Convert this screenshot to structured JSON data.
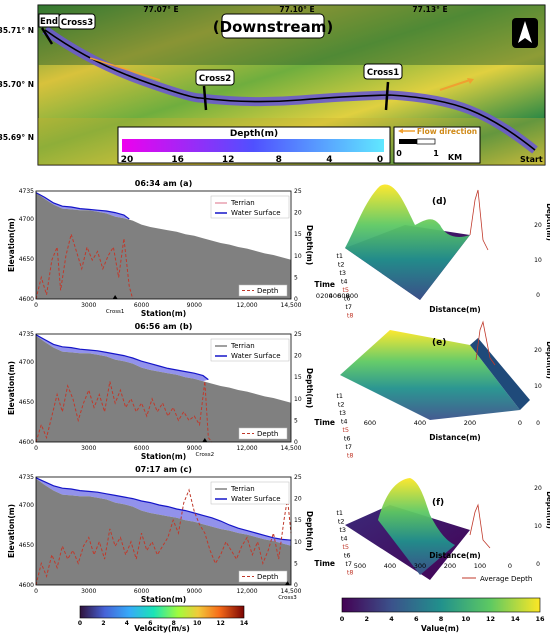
{
  "map": {
    "title": "(Downstream)",
    "lat_labels": [
      "35.71° N",
      "35.70° N",
      "35.69° N"
    ],
    "lon_labels": [
      "77.07° E",
      "77.10° E",
      "77.13° E"
    ],
    "cross_labels": [
      "Cross3",
      "Cross2",
      "Cross1"
    ],
    "end_label": "End",
    "start_label": "Start",
    "flow_label": "Flow direction",
    "scale_labels": [
      "0",
      "1",
      "KM"
    ],
    "depth_title": "Depth(m)",
    "depth_ticks": [
      "20",
      "16",
      "12",
      "8",
      "4",
      "0"
    ]
  },
  "chart_data": [
    {
      "id": "a",
      "type": "area",
      "title": "06:34 am (a)",
      "xlabel": "Station(m)",
      "ylabel": "Elevation(m)",
      "y2label": "Depth(m)",
      "xlim": [
        0,
        14500
      ],
      "ylim": [
        4600,
        4735
      ],
      "y2lim": [
        0,
        25
      ],
      "xticks": [
        "0",
        "3000",
        "6000",
        "9000",
        "12,000",
        "14,500"
      ],
      "yticks": [
        "4600",
        "4650",
        "4700",
        "4735"
      ],
      "y2ticks": [
        "0",
        "5",
        "10",
        "15",
        "20",
        "25"
      ],
      "marker_label": "Cross1",
      "marker_x": 4500,
      "legend": [
        "Terrian",
        "Water Surface"
      ],
      "depth_legend": "Depth",
      "terrain_color": "#808080",
      "water_color": "#1515c8",
      "depth_color": "#c0392b",
      "terrain": [
        [
          0,
          4733
        ],
        [
          500,
          4725
        ],
        [
          1000,
          4718
        ],
        [
          1500,
          4713
        ],
        [
          2000,
          4712
        ],
        [
          2500,
          4711
        ],
        [
          3000,
          4711
        ],
        [
          3500,
          4709
        ],
        [
          4000,
          4707
        ],
        [
          4500,
          4703
        ],
        [
          5000,
          4701
        ],
        [
          5500,
          4698
        ],
        [
          6000,
          4693
        ],
        [
          6500,
          4690
        ],
        [
          7000,
          4688
        ],
        [
          7500,
          4686
        ],
        [
          8000,
          4684
        ],
        [
          8500,
          4681
        ],
        [
          9000,
          4679
        ],
        [
          9500,
          4676
        ],
        [
          10000,
          4673
        ],
        [
          10500,
          4670
        ],
        [
          11000,
          4668
        ],
        [
          11500,
          4665
        ],
        [
          12000,
          4663
        ],
        [
          12500,
          4660
        ],
        [
          13000,
          4657
        ],
        [
          13500,
          4655
        ],
        [
          14000,
          4652
        ],
        [
          14500,
          4649
        ]
      ],
      "water": [
        [
          0,
          4733
        ],
        [
          500,
          4727
        ],
        [
          1000,
          4720
        ],
        [
          1500,
          4716
        ],
        [
          2000,
          4715
        ],
        [
          2500,
          4713
        ],
        [
          3000,
          4712
        ],
        [
          3500,
          4711
        ],
        [
          4000,
          4710
        ],
        [
          4500,
          4708
        ],
        [
          5000,
          4705
        ],
        [
          5300,
          4700
        ]
      ],
      "depth": [
        [
          0,
          0
        ],
        [
          300,
          5
        ],
        [
          600,
          1
        ],
        [
          900,
          9
        ],
        [
          1200,
          12
        ],
        [
          1400,
          2
        ],
        [
          1700,
          10
        ],
        [
          2000,
          15
        ],
        [
          2300,
          11
        ],
        [
          2600,
          7
        ],
        [
          2900,
          12
        ],
        [
          3200,
          9
        ],
        [
          3500,
          11
        ],
        [
          3800,
          7
        ],
        [
          4100,
          10
        ],
        [
          4400,
          12
        ],
        [
          4700,
          5
        ],
        [
          5000,
          14
        ],
        [
          5300,
          3
        ],
        [
          5500,
          0
        ]
      ]
    },
    {
      "id": "b",
      "type": "area",
      "title": "06:56 am (b)",
      "xlabel": "Station(m)",
      "ylabel": "Elevation(m)",
      "y2label": "Depth(m)",
      "xlim": [
        0,
        14500
      ],
      "ylim": [
        4600,
        4735
      ],
      "y2lim": [
        0,
        25
      ],
      "xticks": [
        "0",
        "3000",
        "6000",
        "9000",
        "12,000",
        "14,500"
      ],
      "yticks": [
        "4600",
        "4650",
        "4700",
        "4735"
      ],
      "y2ticks": [
        "0",
        "5",
        "10",
        "15",
        "20",
        "25"
      ],
      "marker_label": "Cross2",
      "marker_x": 9600,
      "legend": [
        "Terrian",
        "Water Surface"
      ],
      "depth_legend": "Depth",
      "terrain_color": "#808080",
      "water_color": "#1515c8",
      "depth_color": "#c0392b",
      "terrain": [
        [
          0,
          4733
        ],
        [
          500,
          4725
        ],
        [
          1000,
          4718
        ],
        [
          1500,
          4713
        ],
        [
          2000,
          4712
        ],
        [
          2500,
          4711
        ],
        [
          3000,
          4711
        ],
        [
          3500,
          4709
        ],
        [
          4000,
          4707
        ],
        [
          4500,
          4703
        ],
        [
          5000,
          4701
        ],
        [
          5500,
          4698
        ],
        [
          6000,
          4693
        ],
        [
          6500,
          4690
        ],
        [
          7000,
          4688
        ],
        [
          7500,
          4686
        ],
        [
          8000,
          4684
        ],
        [
          8500,
          4681
        ],
        [
          9000,
          4679
        ],
        [
          9500,
          4676
        ],
        [
          10000,
          4673
        ],
        [
          10500,
          4670
        ],
        [
          11000,
          4668
        ],
        [
          11500,
          4665
        ],
        [
          12000,
          4663
        ],
        [
          12500,
          4660
        ],
        [
          13000,
          4657
        ],
        [
          13500,
          4655
        ],
        [
          14000,
          4652
        ],
        [
          14500,
          4649
        ]
      ],
      "water": [
        [
          0,
          4734
        ],
        [
          500,
          4728
        ],
        [
          1000,
          4722
        ],
        [
          1500,
          4719
        ],
        [
          2000,
          4718
        ],
        [
          2500,
          4716
        ],
        [
          3000,
          4715
        ],
        [
          3500,
          4714
        ],
        [
          4000,
          4712
        ],
        [
          4500,
          4710
        ],
        [
          5000,
          4708
        ],
        [
          5500,
          4705
        ],
        [
          6000,
          4701
        ],
        [
          6500,
          4698
        ],
        [
          7000,
          4695
        ],
        [
          7500,
          4692
        ],
        [
          8000,
          4690
        ],
        [
          8500,
          4688
        ],
        [
          9000,
          4686
        ],
        [
          9500,
          4683
        ],
        [
          9800,
          4678
        ]
      ],
      "depth": [
        [
          0,
          0
        ],
        [
          300,
          4
        ],
        [
          600,
          1
        ],
        [
          900,
          6
        ],
        [
          1200,
          11
        ],
        [
          1500,
          7
        ],
        [
          1800,
          13
        ],
        [
          2100,
          10
        ],
        [
          2400,
          5
        ],
        [
          2700,
          9
        ],
        [
          3000,
          12
        ],
        [
          3300,
          8
        ],
        [
          3600,
          11
        ],
        [
          3900,
          7
        ],
        [
          4200,
          14
        ],
        [
          4500,
          9
        ],
        [
          4800,
          12
        ],
        [
          5100,
          8
        ],
        [
          5400,
          10
        ],
        [
          5700,
          7
        ],
        [
          6000,
          9
        ],
        [
          6300,
          6
        ],
        [
          6600,
          10
        ],
        [
          6900,
          7
        ],
        [
          7200,
          9
        ],
        [
          7500,
          6
        ],
        [
          7800,
          8
        ],
        [
          8100,
          5
        ],
        [
          8400,
          7
        ],
        [
          8700,
          5
        ],
        [
          9000,
          6
        ],
        [
          9300,
          4
        ],
        [
          9600,
          14
        ],
        [
          9800,
          1
        ],
        [
          10000,
          0
        ]
      ]
    },
    {
      "id": "c",
      "type": "area",
      "title": "07:17 am (c)",
      "xlabel": "Station(m)",
      "ylabel": "Elevation(m)",
      "y2label": "Depth(m)",
      "xlim": [
        0,
        14500
      ],
      "ylim": [
        4600,
        4735
      ],
      "y2lim": [
        0,
        25
      ],
      "xticks": [
        "0",
        "3000",
        "6000",
        "9000",
        "12,000",
        "14,500"
      ],
      "yticks": [
        "4600",
        "4650",
        "4700",
        "4735"
      ],
      "y2ticks": [
        "0",
        "5",
        "10",
        "15",
        "20",
        "25"
      ],
      "marker_label": "Cross3",
      "marker_x": 14300,
      "legend": [
        "Terrian",
        "Water Surface"
      ],
      "depth_legend": "Depth",
      "terrain_color": "#808080",
      "water_color": "#1515c8",
      "depth_color": "#c0392b",
      "terrain": [
        [
          0,
          4733
        ],
        [
          500,
          4725
        ],
        [
          1000,
          4718
        ],
        [
          1500,
          4713
        ],
        [
          2000,
          4712
        ],
        [
          2500,
          4711
        ],
        [
          3000,
          4711
        ],
        [
          3500,
          4709
        ],
        [
          4000,
          4707
        ],
        [
          4500,
          4703
        ],
        [
          5000,
          4701
        ],
        [
          5500,
          4698
        ],
        [
          6000,
          4693
        ],
        [
          6500,
          4690
        ],
        [
          7000,
          4688
        ],
        [
          7500,
          4686
        ],
        [
          8000,
          4684
        ],
        [
          8500,
          4681
        ],
        [
          9000,
          4679
        ],
        [
          9500,
          4676
        ],
        [
          10000,
          4673
        ],
        [
          10500,
          4670
        ],
        [
          11000,
          4668
        ],
        [
          11500,
          4665
        ],
        [
          12000,
          4663
        ],
        [
          12500,
          4660
        ],
        [
          13000,
          4657
        ],
        [
          13500,
          4655
        ],
        [
          14000,
          4652
        ],
        [
          14500,
          4649
        ]
      ],
      "water": [
        [
          0,
          4734
        ],
        [
          500,
          4729
        ],
        [
          1000,
          4724
        ],
        [
          1500,
          4721
        ],
        [
          2000,
          4720
        ],
        [
          2500,
          4718
        ],
        [
          3000,
          4717
        ],
        [
          3500,
          4716
        ],
        [
          4000,
          4714
        ],
        [
          4500,
          4712
        ],
        [
          5000,
          4710
        ],
        [
          5500,
          4708
        ],
        [
          6000,
          4705
        ],
        [
          6500,
          4703
        ],
        [
          7000,
          4700
        ],
        [
          7500,
          4698
        ],
        [
          8000,
          4695
        ],
        [
          8500,
          4693
        ],
        [
          9000,
          4690
        ],
        [
          9500,
          4687
        ],
        [
          10000,
          4684
        ],
        [
          10500,
          4680
        ],
        [
          11000,
          4675
        ],
        [
          11500,
          4671
        ],
        [
          12000,
          4668
        ],
        [
          12500,
          4665
        ],
        [
          13000,
          4662
        ],
        [
          13500,
          4659
        ],
        [
          14000,
          4657
        ],
        [
          14500,
          4656
        ]
      ],
      "depth": [
        [
          0,
          0
        ],
        [
          300,
          5
        ],
        [
          600,
          2
        ],
        [
          900,
          7
        ],
        [
          1200,
          4
        ],
        [
          1500,
          9
        ],
        [
          1800,
          6
        ],
        [
          2100,
          8
        ],
        [
          2400,
          5
        ],
        [
          2700,
          9
        ],
        [
          3000,
          11
        ],
        [
          3300,
          7
        ],
        [
          3600,
          10
        ],
        [
          3900,
          6
        ],
        [
          4200,
          13
        ],
        [
          4500,
          9
        ],
        [
          4800,
          11
        ],
        [
          5100,
          7
        ],
        [
          5400,
          10
        ],
        [
          5700,
          6
        ],
        [
          6000,
          12
        ],
        [
          6300,
          8
        ],
        [
          6600,
          10
        ],
        [
          6900,
          7
        ],
        [
          7200,
          9
        ],
        [
          7500,
          11
        ],
        [
          7800,
          15
        ],
        [
          8100,
          12
        ],
        [
          8400,
          19
        ],
        [
          8700,
          22
        ],
        [
          9000,
          17
        ],
        [
          9300,
          14
        ],
        [
          9600,
          12
        ],
        [
          9900,
          8
        ],
        [
          10200,
          5
        ],
        [
          10500,
          7
        ],
        [
          10800,
          10
        ],
        [
          11100,
          8
        ],
        [
          11400,
          6
        ],
        [
          11700,
          9
        ],
        [
          12000,
          11
        ],
        [
          12300,
          7
        ],
        [
          12600,
          10
        ],
        [
          12900,
          5
        ],
        [
          13200,
          8
        ],
        [
          13500,
          12
        ],
        [
          13800,
          6
        ],
        [
          14100,
          15
        ],
        [
          14300,
          20
        ],
        [
          14500,
          12
        ]
      ]
    },
    {
      "id": "d",
      "type": "surface",
      "title": "(d)",
      "xlabel": "Distance(m)",
      "ylabel": "Time",
      "zlabel": "Depth(m)",
      "xticks": [
        "800",
        "600",
        "400",
        "200",
        "0"
      ],
      "time_ticks": [
        "t1",
        "t2",
        "t3",
        "t4",
        "t5",
        "t6",
        "t7",
        "t8"
      ],
      "zticks": [
        "0",
        "10",
        "20"
      ]
    },
    {
      "id": "e",
      "type": "surface",
      "title": "(e)",
      "xlabel": "Distance(m)",
      "ylabel": "Time",
      "zlabel": "Depth(m)",
      "xticks": [
        "600",
        "400",
        "200",
        "0"
      ],
      "time_ticks": [
        "t1",
        "t2",
        "t3",
        "t4",
        "t5",
        "t6",
        "t7",
        "t8"
      ],
      "zticks": [
        "0",
        "10",
        "20"
      ]
    },
    {
      "id": "f",
      "type": "surface",
      "title": "(f)",
      "xlabel": "Distance(m)",
      "ylabel": "Time",
      "zlabel": "Depth(m)",
      "xticks": [
        "500",
        "400",
        "300",
        "200",
        "100",
        "0"
      ],
      "time_ticks": [
        "t1",
        "t2",
        "t3",
        "t4",
        "t5",
        "t6",
        "t7",
        "t8"
      ],
      "zticks": [
        "0",
        "10",
        "20"
      ],
      "legend": [
        "Average Depth"
      ]
    }
  ],
  "colorbars": {
    "velocity": {
      "label": "Velocity(m/s)",
      "ticks": [
        "0",
        "2",
        "4",
        "6",
        "8",
        "10",
        "12",
        "14"
      ]
    },
    "value": {
      "label": "Value(m)",
      "ticks": [
        "0",
        "2",
        "4",
        "6",
        "8",
        "10",
        "12",
        "14",
        "16"
      ]
    }
  }
}
